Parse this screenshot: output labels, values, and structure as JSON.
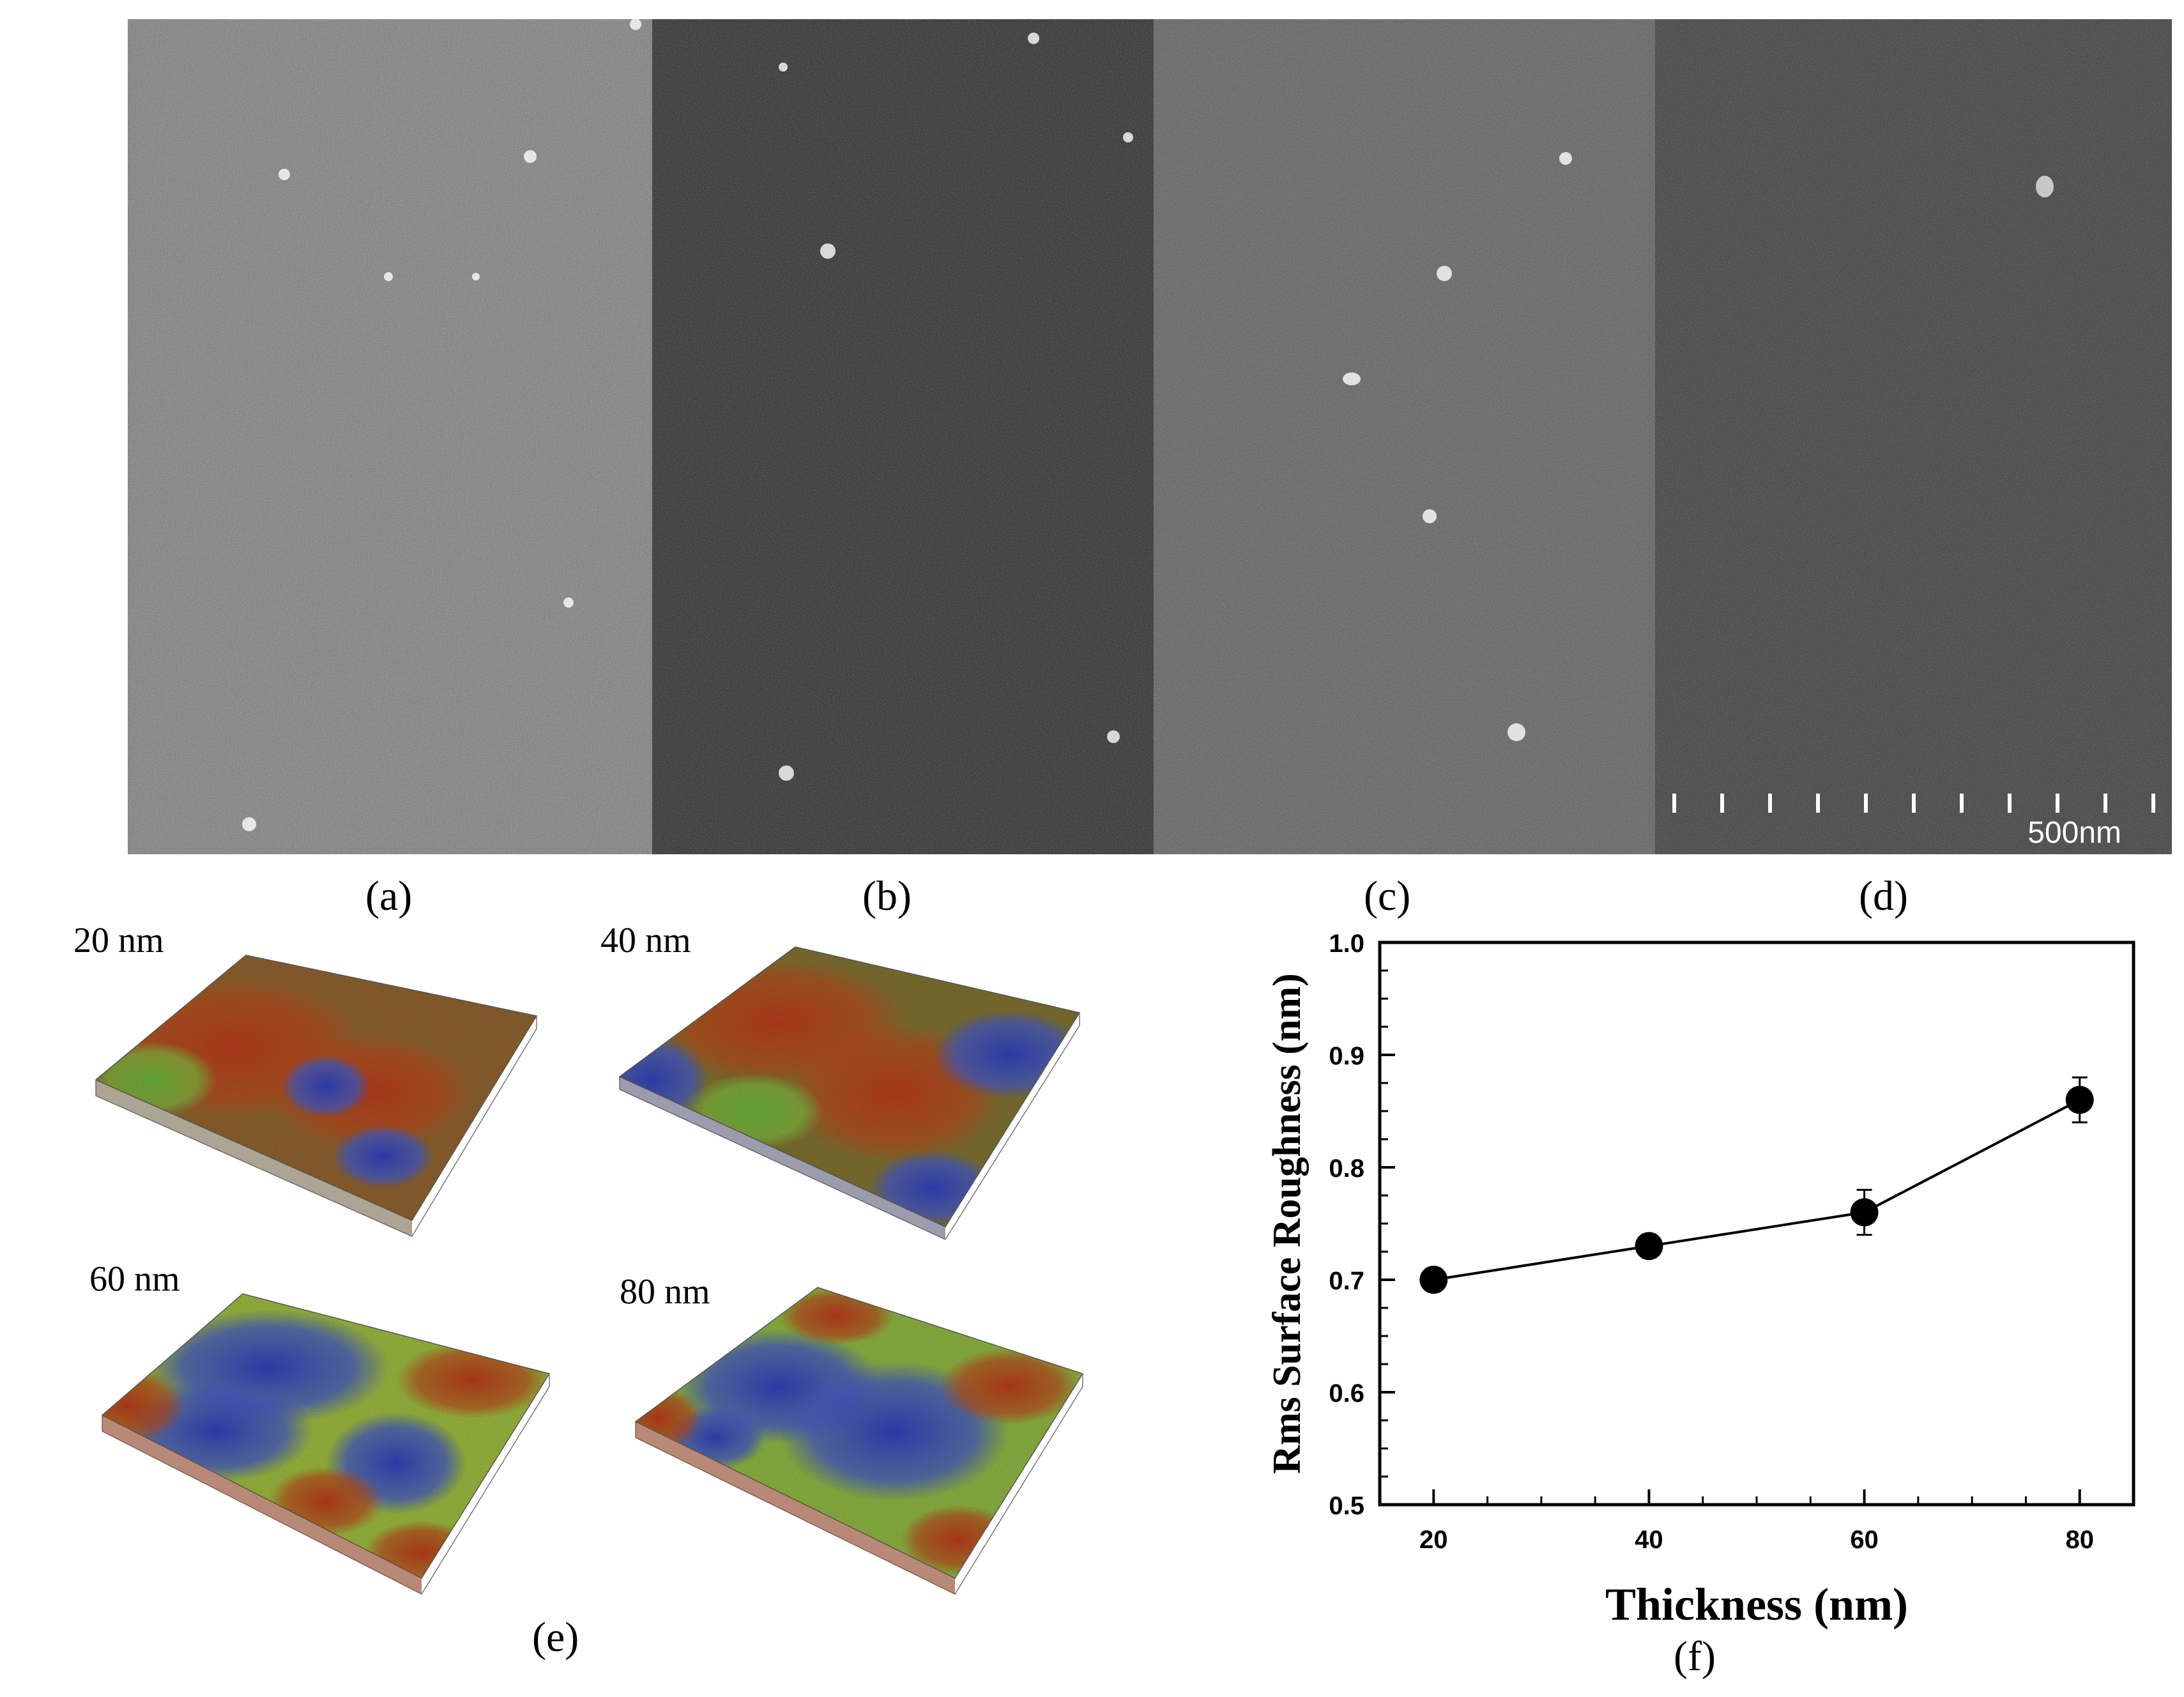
{
  "sem": {
    "panels": [
      {
        "label": "(a)",
        "shade": "#7e7e7e"
      },
      {
        "label": "(b)",
        "shade": "#333333"
      },
      {
        "label": "(c)",
        "shade": "#626262"
      },
      {
        "label": "(d)",
        "shade": "#424242"
      }
    ],
    "scale_label": "500nm"
  },
  "afm": {
    "panel_label": "(e)",
    "surfaces": [
      {
        "title": "20 nm"
      },
      {
        "title": "40 nm"
      },
      {
        "title": "60 nm"
      },
      {
        "title": "80 nm"
      }
    ]
  },
  "chart_data": {
    "type": "scatter",
    "panel_label": "(f)",
    "xlabel": "Thickness (nm)",
    "ylabel": "Rms Surface Roughness (nm)",
    "x": [
      20,
      40,
      60,
      80
    ],
    "y": [
      0.7,
      0.73,
      0.76,
      0.86
    ],
    "yerr": [
      0.01,
      0.01,
      0.02,
      0.02
    ],
    "xlim": [
      15,
      85
    ],
    "ylim": [
      0.5,
      1.0
    ],
    "xticks": [
      "20",
      "40",
      "60",
      "80"
    ],
    "yticks": [
      "0.5",
      "0.6",
      "0.7",
      "0.8",
      "0.9",
      "1.0"
    ],
    "line": true,
    "marker": "filled-circle",
    "grid": false
  }
}
